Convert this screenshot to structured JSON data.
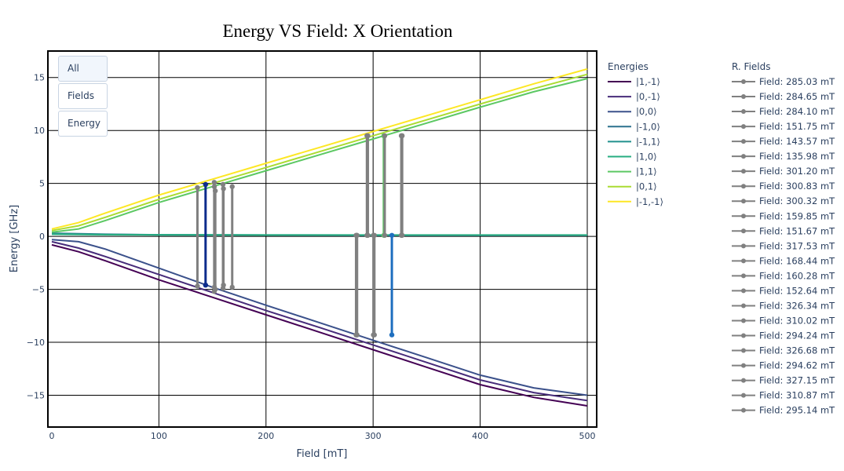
{
  "controls": {
    "buttons": [
      {
        "label": "All",
        "active": true
      },
      {
        "label": "Fields",
        "active": false
      },
      {
        "label": "Energy",
        "active": false
      }
    ]
  },
  "chart_data": {
    "type": "line",
    "title": "Energy VS Field: X Orientation",
    "xlabel": "Field [mT]",
    "ylabel": "Energy [GHz]",
    "xlim": [
      0,
      500
    ],
    "ylim": [
      -18,
      17.5
    ],
    "xticks": [
      0,
      100,
      200,
      300,
      400,
      500
    ],
    "yticks": [
      -15,
      -10,
      -5,
      0,
      5,
      10,
      15
    ],
    "grid": true,
    "legend_titles": {
      "energies": "Energies",
      "fields": "R. Fields"
    },
    "series": [
      {
        "name": "|1,-1⟩",
        "color": "#440154",
        "x": [
          0,
          25,
          50,
          100,
          150,
          200,
          250,
          300,
          350,
          400,
          450,
          500
        ],
        "y": [
          -0.8,
          -1.45,
          -2.3,
          -4.1,
          -5.75,
          -7.4,
          -9.05,
          -10.7,
          -12.35,
          -14.0,
          -15.2,
          -16.0
        ]
      },
      {
        "name": "|0,-1⟩",
        "color": "#472c7a",
        "x": [
          0,
          25,
          50,
          100,
          150,
          200,
          250,
          300,
          350,
          400,
          450,
          500
        ],
        "y": [
          -0.5,
          -1.1,
          -1.9,
          -3.6,
          -5.3,
          -7.0,
          -8.6,
          -10.25,
          -11.9,
          -13.55,
          -14.75,
          -15.5
        ]
      },
      {
        "name": "|0,0⟩",
        "color": "#3b518b",
        "x": [
          0,
          25,
          50,
          100,
          150,
          200,
          250,
          300,
          350,
          400,
          450,
          500
        ],
        "y": [
          -0.3,
          -0.5,
          -1.2,
          -3.0,
          -4.8,
          -6.5,
          -8.15,
          -9.8,
          -11.45,
          -13.1,
          -14.3,
          -15.0
        ]
      },
      {
        "name": "|-1,0⟩",
        "color": "#2c718e",
        "x": [
          0,
          50,
          100,
          200,
          300,
          400,
          500
        ],
        "y": [
          0.3,
          0.2,
          0.15,
          0.12,
          0.1,
          0.1,
          0.1
        ]
      },
      {
        "name": "|-1,1⟩",
        "color": "#21908d",
        "x": [
          0,
          50,
          100,
          200,
          300,
          400,
          500
        ],
        "y": [
          0.25,
          0.18,
          0.15,
          0.13,
          0.12,
          0.12,
          0.12
        ]
      },
      {
        "name": "|1,0⟩",
        "color": "#27ad81",
        "x": [
          0,
          50,
          100,
          200,
          300,
          400,
          500
        ],
        "y": [
          0.2,
          0.16,
          0.14,
          0.13,
          0.13,
          0.13,
          0.13
        ]
      },
      {
        "name": "|1,1⟩",
        "color": "#5cc863",
        "x": [
          0,
          25,
          50,
          100,
          150,
          200,
          250,
          300,
          350,
          400,
          450,
          500
        ],
        "y": [
          0.4,
          0.7,
          1.5,
          3.2,
          4.7,
          6.2,
          7.7,
          9.2,
          10.7,
          12.2,
          13.65,
          14.9
        ]
      },
      {
        "name": "|0,1⟩",
        "color": "#aadc32",
        "x": [
          0,
          25,
          50,
          100,
          150,
          200,
          250,
          300,
          350,
          400,
          450,
          500
        ],
        "y": [
          0.55,
          1.0,
          1.8,
          3.5,
          5.0,
          6.5,
          8.0,
          9.5,
          11.0,
          12.5,
          13.95,
          15.3
        ]
      },
      {
        "name": "|-1,-1⟩",
        "color": "#fde725",
        "x": [
          0,
          25,
          50,
          100,
          150,
          200,
          250,
          300,
          350,
          400,
          450,
          500
        ],
        "y": [
          0.7,
          1.3,
          2.2,
          3.9,
          5.4,
          6.9,
          8.4,
          9.9,
          11.4,
          12.9,
          14.4,
          15.8
        ]
      }
    ],
    "field_lines": [
      {
        "name": "Field: 285.03 mT",
        "x": 285.03,
        "y": [
          0.1,
          -9.3
        ],
        "color": "#808080"
      },
      {
        "name": "Field: 284.65 mT",
        "x": 284.65,
        "y": [
          0.1,
          -9.3
        ],
        "color": "#808080"
      },
      {
        "name": "Field: 284.10 mT",
        "x": 284.1,
        "y": [
          0.1,
          -9.3
        ],
        "color": "#808080"
      },
      {
        "name": "Field: 151.75 mT",
        "x": 151.75,
        "y": [
          -4.8,
          4.7
        ],
        "color": "#808080"
      },
      {
        "name": "Field: 143.57 mT",
        "x": 143.57,
        "y": [
          -4.6,
          4.9
        ],
        "color": "#0d2c8c"
      },
      {
        "name": "Field: 135.98 mT",
        "x": 135.98,
        "y": [
          -4.7,
          4.6
        ],
        "color": "#808080"
      },
      {
        "name": "Field: 301.20 mT",
        "x": 301.2,
        "y": [
          0.1,
          -9.3
        ],
        "color": "#808080"
      },
      {
        "name": "Field: 300.83 mT",
        "x": 300.83,
        "y": [
          0.1,
          -9.3
        ],
        "color": "#808080"
      },
      {
        "name": "Field: 300.32 mT",
        "x": 300.32,
        "y": [
          0.1,
          -9.3
        ],
        "color": "#808080"
      },
      {
        "name": "Field: 159.85 mT",
        "x": 159.85,
        "y": [
          -4.9,
          4.9
        ],
        "color": "#808080"
      },
      {
        "name": "Field: 151.67 mT",
        "x": 151.67,
        "y": [
          -5.2,
          5.1
        ],
        "color": "#808080"
      },
      {
        "name": "Field: 317.53 mT",
        "x": 317.53,
        "y": [
          0.1,
          -9.3
        ],
        "color": "#1f6fbf"
      },
      {
        "name": "Field: 168.44 mT",
        "x": 168.44,
        "y": [
          -4.8,
          4.7
        ],
        "color": "#808080"
      },
      {
        "name": "Field: 160.28 mT",
        "x": 160.28,
        "y": [
          -4.6,
          4.5
        ],
        "color": "#808080"
      },
      {
        "name": "Field: 152.64 mT",
        "x": 152.64,
        "y": [
          -5.0,
          4.3
        ],
        "color": "#808080"
      },
      {
        "name": "Field: 326.34 mT",
        "x": 326.34,
        "y": [
          0.1,
          9.5
        ],
        "color": "#808080"
      },
      {
        "name": "Field: 310.02 mT",
        "x": 310.02,
        "y": [
          0.1,
          9.5
        ],
        "color": "#5cc863"
      },
      {
        "name": "Field: 294.24 mT",
        "x": 294.24,
        "y": [
          0.1,
          9.5
        ],
        "color": "#808080"
      },
      {
        "name": "Field: 326.68 mT",
        "x": 326.68,
        "y": [
          0.1,
          9.5
        ],
        "color": "#808080"
      },
      {
        "name": "Field: 294.62 mT",
        "x": 294.62,
        "y": [
          0.1,
          9.5
        ],
        "color": "#808080"
      },
      {
        "name": "Field: 327.15 mT",
        "x": 327.15,
        "y": [
          0.1,
          9.5
        ],
        "color": "#808080"
      },
      {
        "name": "Field: 310.87 mT",
        "x": 310.87,
        "y": [
          0.1,
          9.5
        ],
        "color": "#808080"
      },
      {
        "name": "Field: 295.14 mT",
        "x": 295.14,
        "y": [
          0.1,
          9.5
        ],
        "color": "#808080"
      }
    ]
  }
}
